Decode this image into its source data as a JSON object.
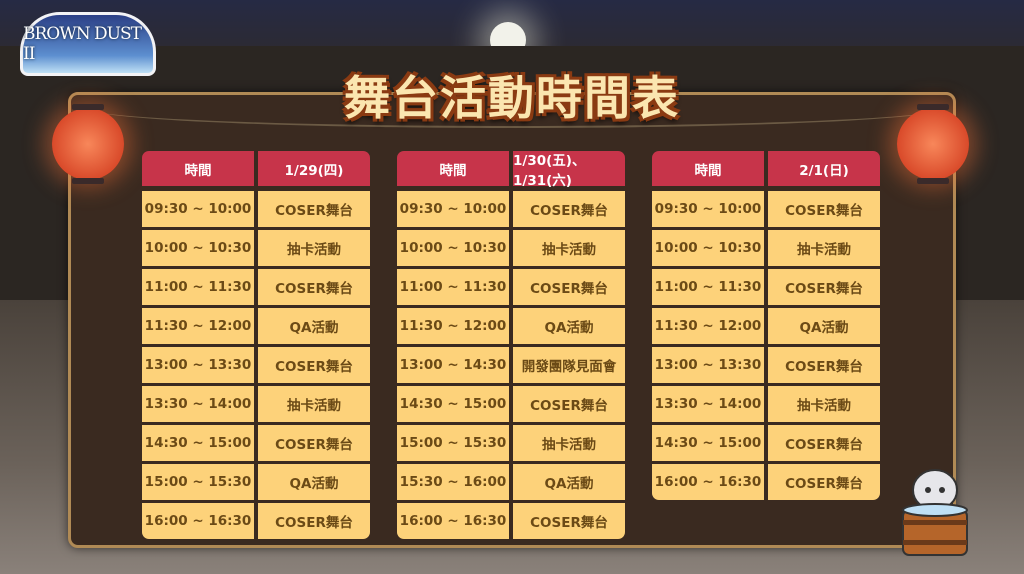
{
  "logo": {
    "text": "BROWN DUST II"
  },
  "title": "舞台活動時間表",
  "schedules": [
    {
      "headers": [
        "時間",
        "1/29(四)"
      ],
      "rows": [
        [
          "09:30 ~ 10:00",
          "COSER舞台"
        ],
        [
          "10:00 ~ 10:30",
          "抽卡活動"
        ],
        [
          "11:00 ~ 11:30",
          "COSER舞台"
        ],
        [
          "11:30 ~ 12:00",
          "QA活動"
        ],
        [
          "13:00 ~ 13:30",
          "COSER舞台"
        ],
        [
          "13:30 ~ 14:00",
          "抽卡活動"
        ],
        [
          "14:30 ~ 15:00",
          "COSER舞台"
        ],
        [
          "15:00 ~ 15:30",
          "QA活動"
        ],
        [
          "16:00 ~ 16:30",
          "COSER舞台"
        ]
      ]
    },
    {
      "headers": [
        "時間",
        "1/30(五)、1/31(六)"
      ],
      "rows": [
        [
          "09:30 ~ 10:00",
          "COSER舞台"
        ],
        [
          "10:00 ~ 10:30",
          "抽卡活動"
        ],
        [
          "11:00 ~ 11:30",
          "COSER舞台"
        ],
        [
          "11:30 ~ 12:00",
          "QA活動"
        ],
        [
          "13:00 ~ 14:30",
          "開發團隊見面會"
        ],
        [
          "14:30 ~ 15:00",
          "COSER舞台"
        ],
        [
          "15:00 ~ 15:30",
          "抽卡活動"
        ],
        [
          "15:30 ~ 16:00",
          "QA活動"
        ],
        [
          "16:00 ~ 16:30",
          "COSER舞台"
        ]
      ]
    },
    {
      "headers": [
        "時間",
        "2/1(日)"
      ],
      "rows": [
        [
          "09:30 ~ 10:00",
          "COSER舞台"
        ],
        [
          "10:00 ~ 10:30",
          "抽卡活動"
        ],
        [
          "11:00 ~ 11:30",
          "COSER舞台"
        ],
        [
          "11:30 ~ 12:00",
          "QA活動"
        ],
        [
          "13:00 ~ 13:30",
          "COSER舞台"
        ],
        [
          "13:30 ~ 14:00",
          "抽卡活動"
        ],
        [
          "14:30 ~ 15:00",
          "COSER舞台"
        ],
        [
          "16:00 ~ 16:30",
          "COSER舞台"
        ]
      ]
    }
  ],
  "colors": {
    "header": "#c7344a",
    "cell": "#fdd27a",
    "cell_text": "#6b4a16",
    "title": "#fbe6b0"
  }
}
